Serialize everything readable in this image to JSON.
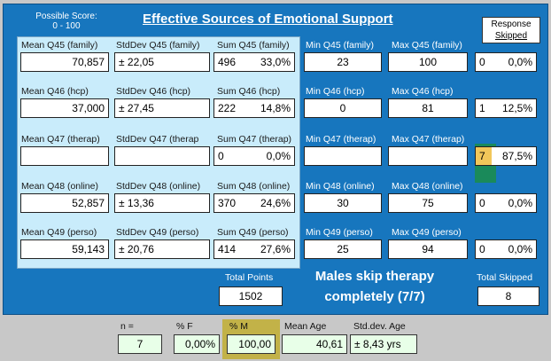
{
  "header": {
    "possible_score_line1": "Possible Score:",
    "possible_score_line2": "0 - 100",
    "title": "Effective Sources of Emotional Support",
    "response_line1": "Response",
    "response_line2": "Skipped"
  },
  "rows": [
    {
      "mean_label": "Mean Q45 (family)",
      "mean": "70,857",
      "sd_label": "StdDev Q45 (family)",
      "sd": "± 22,05",
      "sum_label": "Sum Q45 (family)",
      "sum": "496",
      "sum_pct": "33,0%",
      "min_label": "Min Q45 (family)",
      "min": "23",
      "max_label": "Max Q45 (family)",
      "max": "100",
      "skip_n": "0",
      "skip_pct": "0,0%"
    },
    {
      "mean_label": "Mean Q46 (hcp)",
      "mean": "37,000",
      "sd_label": "StdDev Q46 (hcp)",
      "sd": "± 27,45",
      "sum_label": "Sum Q46 (hcp)",
      "sum": "222",
      "sum_pct": "14,8%",
      "min_label": "Min Q46 (hcp)",
      "min": "0",
      "max_label": "Max Q46 (hcp)",
      "max": "81",
      "skip_n": "1",
      "skip_pct": "12,5%"
    },
    {
      "mean_label": "Mean Q47 (therap)",
      "mean": "",
      "sd_label": "StdDev Q47 (therap",
      "sd": "",
      "sum_label": "Sum Q47 (therap)",
      "sum": "0",
      "sum_pct": "0,0%",
      "min_label": "Min Q47 (therap)",
      "min": "",
      "max_label": "Max Q47 (therap)",
      "max": "",
      "skip_n": "7",
      "skip_pct": "87,5%"
    },
    {
      "mean_label": "Mean Q48 (online)",
      "mean": "52,857",
      "sd_label": "StdDev Q48 (online)",
      "sd": "± 13,36",
      "sum_label": "Sum Q48 (online)",
      "sum": "370",
      "sum_pct": "24,6%",
      "min_label": "Min Q48 (online)",
      "min": "30",
      "max_label": "Max Q48 (online)",
      "max": "75",
      "skip_n": "0",
      "skip_pct": "0,0%"
    },
    {
      "mean_label": "Mean Q49 (perso)",
      "mean": "59,143",
      "sd_label": "StdDev Q49 (perso)",
      "sd": "± 20,76",
      "sum_label": "Sum Q49 (perso)",
      "sum": "414",
      "sum_pct": "27,6%",
      "min_label": "Min Q49 (perso)",
      "min": "25",
      "max_label": "Max Q49 (perso)",
      "max": "94",
      "skip_n": "0",
      "skip_pct": "0,0%"
    }
  ],
  "totals": {
    "points_label": "Total Points",
    "points": "1502",
    "skipped_label": "Total Skipped",
    "skipped": "8",
    "note_line1": "Males skip therapy",
    "note_line2": "completely (7/7)"
  },
  "footer": {
    "n_label": "n =",
    "n": "7",
    "pf_label": "% F",
    "pf": "0,00%",
    "pm_label": "% M",
    "pm": "100,00",
    "mean_age_label": "Mean Age",
    "mean_age": "40,61",
    "sd_age_label": "Std.dev. Age",
    "sd_age": "± 8,43 yrs"
  },
  "colors": {
    "panel_blue": "#1776be",
    "stats_bg": "#c9ecfb",
    "highlight_yellow": "#f2c75a",
    "highlight_green": "#1a8a5a",
    "footer_box": "#e8ffe8"
  }
}
